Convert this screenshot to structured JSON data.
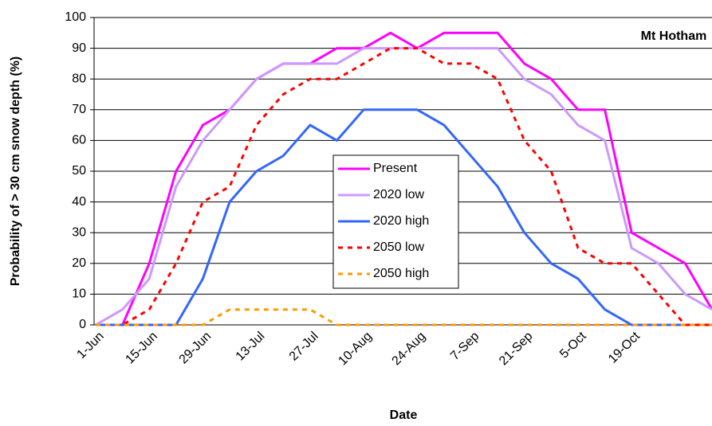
{
  "chart_data": {
    "type": "line",
    "title": "Mt Hotham",
    "x_label": "Date",
    "y_label": "Probability of > 30 cm snow depth (%)",
    "categories": [
      "1-Jun",
      null,
      "15-Jun",
      null,
      "29-Jun",
      null,
      "13-Jul",
      null,
      "27-Jul",
      null,
      "10-Aug",
      null,
      "24-Aug",
      null,
      "7-Sep",
      null,
      "21-Sep",
      null,
      "5-Oct",
      null,
      "19-Oct",
      null,
      null,
      null
    ],
    "series": [
      {
        "name": "Present",
        "color": "#ff00ff",
        "dashed": false,
        "values": [
          0,
          0,
          20,
          50,
          65,
          70,
          80,
          85,
          85,
          90,
          90,
          95,
          90,
          95,
          95,
          95,
          85,
          80,
          70,
          70,
          30,
          25,
          20,
          5
        ]
      },
      {
        "name": "2020 low",
        "color": "#cc99ff",
        "dashed": false,
        "values": [
          0,
          5,
          15,
          45,
          60,
          70,
          80,
          85,
          85,
          85,
          90,
          90,
          90,
          90,
          90,
          90,
          80,
          75,
          65,
          60,
          25,
          20,
          10,
          5
        ]
      },
      {
        "name": "2020 high",
        "color": "#3366ff",
        "dashed": false,
        "values": [
          0,
          0,
          0,
          0,
          15,
          40,
          50,
          55,
          65,
          60,
          70,
          70,
          70,
          65,
          55,
          45,
          30,
          20,
          15,
          5,
          0,
          0,
          0,
          0
        ]
      },
      {
        "name": "2050 low",
        "color": "#ff0000",
        "dashed": true,
        "values": [
          0,
          0,
          5,
          20,
          40,
          45,
          65,
          75,
          80,
          80,
          85,
          90,
          90,
          85,
          85,
          80,
          60,
          50,
          25,
          20,
          20,
          10,
          0,
          0
        ]
      },
      {
        "name": "2050 high",
        "color": "#ff9900",
        "dashed": true,
        "values": [
          0,
          0,
          0,
          0,
          0,
          5,
          5,
          5,
          5,
          0,
          0,
          0,
          0,
          0,
          0,
          0,
          0,
          0,
          0,
          0,
          0,
          0,
          0,
          0
        ]
      }
    ],
    "ylim": [
      0,
      100
    ],
    "yticks": [
      0,
      10,
      20,
      30,
      40,
      50,
      60,
      70,
      80,
      90,
      100
    ],
    "grid": true
  }
}
